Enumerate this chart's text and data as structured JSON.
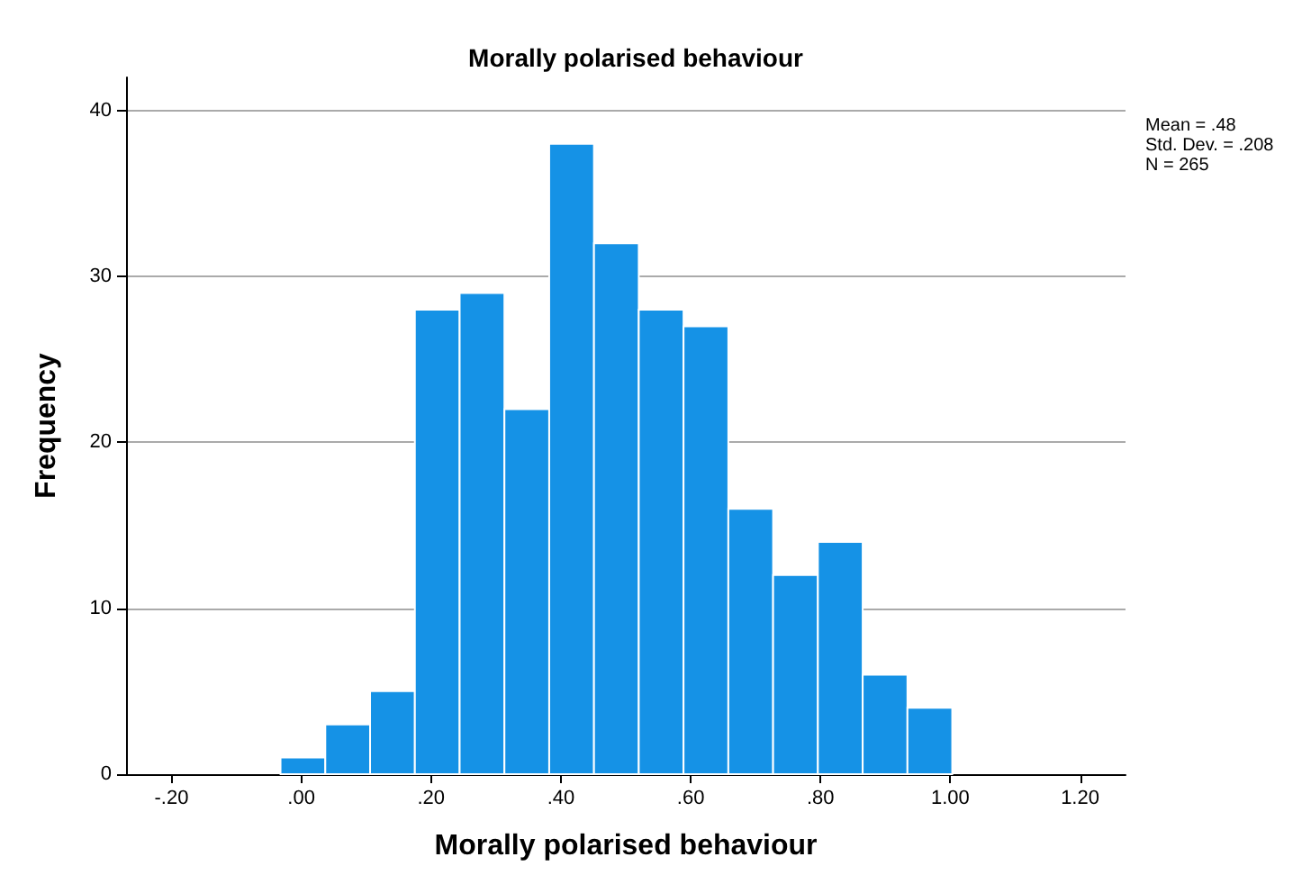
{
  "chart_data": {
    "type": "histogram",
    "title": "Morally polarised behaviour",
    "xlabel": "Morally polarised behaviour",
    "ylabel": "Frequency",
    "bins": [
      -0.032,
      0.037,
      0.106,
      0.175,
      0.244,
      0.313,
      0.382,
      0.451,
      0.52,
      0.589,
      0.658,
      0.727,
      0.796,
      0.865,
      0.934,
      1.003
    ],
    "values": [
      1,
      3,
      5,
      28,
      29,
      22,
      38,
      32,
      28,
      27,
      16,
      12,
      14,
      6,
      4
    ],
    "color": "#1592e6",
    "xlim": [
      -0.27,
      1.27
    ],
    "xticks": [
      {
        "value": -0.2,
        "label": "-.20"
      },
      {
        "value": 0,
        "label": ".00"
      },
      {
        "value": 0.2,
        "label": ".20"
      },
      {
        "value": 0.4,
        "label": ".40"
      },
      {
        "value": 0.6,
        "label": ".60"
      },
      {
        "value": 0.8,
        "label": ".80"
      },
      {
        "value": 1,
        "label": "1.00"
      },
      {
        "value": 1.2,
        "label": "1.20"
      }
    ],
    "ylim": [
      0,
      42
    ],
    "yticks": [
      0,
      10,
      20,
      30,
      40
    ],
    "grid": "y",
    "annotations": [
      "Mean = .48",
      "Std. Dev. = .208",
      "N = 265"
    ]
  }
}
